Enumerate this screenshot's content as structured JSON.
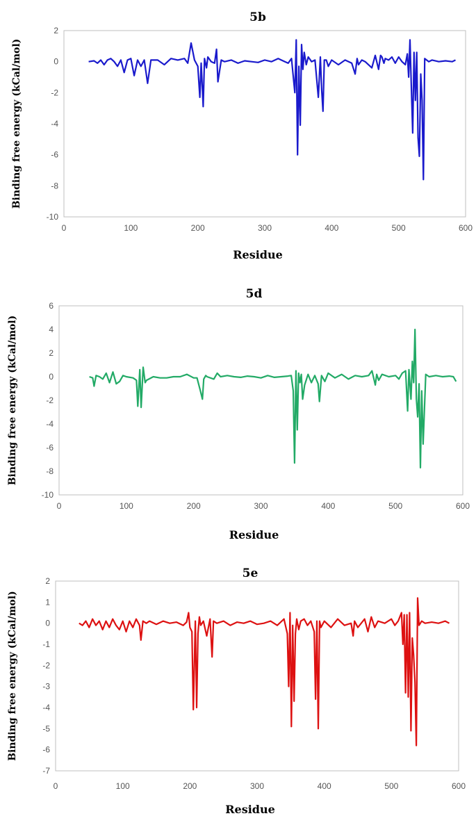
{
  "chart_data": [
    {
      "type": "line",
      "title": "5b",
      "xlabel": "Residue",
      "ylabel": "Binding free energy (kCal/mol)",
      "xlim": [
        0,
        600
      ],
      "ylim": [
        -10,
        2
      ],
      "xticks": [
        0,
        100,
        200,
        300,
        400,
        500,
        600
      ],
      "yticks": [
        -10,
        -8,
        -6,
        -4,
        -2,
        0,
        2
      ],
      "grid": false,
      "color": "#1a1acc",
      "series": [
        {
          "x": [
            37,
            45,
            50,
            55,
            60,
            65,
            70,
            75,
            80,
            85,
            90,
            95,
            100,
            105,
            110,
            115,
            120,
            125,
            130,
            140,
            150,
            160,
            170,
            180,
            185,
            190,
            195,
            200,
            203,
            205,
            208,
            210,
            213,
            215,
            220,
            225,
            228,
            230,
            235,
            240,
            250,
            260,
            270,
            280,
            290,
            300,
            310,
            320,
            330,
            335,
            340,
            345,
            347,
            349,
            351,
            353,
            355,
            357,
            359,
            362,
            365,
            370,
            375,
            380,
            383,
            385,
            387,
            389,
            392,
            395,
            400,
            410,
            420,
            430,
            435,
            438,
            440,
            445,
            450,
            460,
            465,
            470,
            473,
            475,
            478,
            480,
            485,
            490,
            495,
            500,
            505,
            510,
            513,
            515,
            517,
            519,
            521,
            523,
            525,
            527,
            529,
            531,
            533,
            535,
            537,
            539,
            545,
            550,
            560,
            570,
            580,
            585
          ],
          "y": [
            0,
            0.05,
            -0.1,
            0.1,
            -0.2,
            0.1,
            0.2,
            0,
            -0.3,
            0.1,
            -0.7,
            0.1,
            0.2,
            -0.9,
            0.1,
            -0.3,
            0.1,
            -1.4,
            0.1,
            0.1,
            -0.2,
            0.2,
            0.1,
            0.2,
            -0.1,
            1.2,
            0.1,
            -0.3,
            -2.3,
            -0.1,
            -2.9,
            0.2,
            -0.4,
            0.3,
            0,
            -0.1,
            0.8,
            -1.3,
            0.1,
            0,
            0.1,
            -0.1,
            0.05,
            0,
            -0.05,
            0.1,
            0,
            0.2,
            0,
            -0.1,
            0.2,
            -2,
            1.4,
            -6,
            -0.3,
            -4.1,
            1.1,
            -0.5,
            0.6,
            -0.2,
            0.3,
            0,
            0.1,
            -2.3,
            0.3,
            -1.8,
            -3.2,
            0.1,
            0.1,
            -0.3,
            0.1,
            -0.2,
            0.1,
            -0.1,
            -0.8,
            0.2,
            -0.2,
            0.1,
            0,
            -0.4,
            0.4,
            -0.5,
            0.4,
            0.3,
            -0.1,
            0.2,
            0.1,
            0.3,
            -0.1,
            0.3,
            0,
            -0.2,
            0.5,
            -1,
            1.4,
            -1.7,
            -4.6,
            0.6,
            -2.5,
            0.6,
            -4.9,
            -6.1,
            -0.8,
            -2.5,
            -7.6,
            0.2,
            0,
            0.1,
            0,
            0.05,
            0,
            0.1
          ]
        }
      ]
    },
    {
      "type": "line",
      "title": "5d",
      "xlabel": "Residue",
      "ylabel": "Binding free energy (kCal/mol)",
      "xlim": [
        0,
        600
      ],
      "ylim": [
        -10,
        6
      ],
      "xticks": [
        0,
        100,
        200,
        300,
        400,
        500,
        600
      ],
      "yticks": [
        -10,
        -8,
        -6,
        -4,
        -2,
        0,
        2,
        4,
        6
      ],
      "grid": false,
      "color": "#22aa66",
      "series": [
        {
          "x": [
            45,
            50,
            52,
            55,
            60,
            65,
            70,
            75,
            80,
            85,
            90,
            95,
            100,
            110,
            115,
            117,
            120,
            122,
            125,
            128,
            130,
            140,
            150,
            160,
            170,
            180,
            190,
            200,
            205,
            210,
            213,
            215,
            218,
            220,
            230,
            235,
            240,
            250,
            260,
            270,
            280,
            290,
            300,
            310,
            320,
            330,
            340,
            345,
            348,
            350,
            352,
            354,
            356,
            358,
            360,
            362,
            365,
            370,
            375,
            380,
            385,
            387,
            390,
            395,
            400,
            410,
            420,
            430,
            440,
            450,
            460,
            465,
            470,
            472,
            475,
            480,
            490,
            500,
            505,
            510,
            515,
            518,
            520,
            523,
            525,
            527,
            529,
            531,
            533,
            535,
            537,
            539,
            541,
            545,
            550,
            560,
            570,
            580,
            586,
            590
          ],
          "y": [
            0,
            -0.1,
            -0.8,
            0.1,
            0,
            -0.2,
            0.3,
            -0.5,
            0.4,
            -0.6,
            -0.4,
            0.1,
            0,
            -0.1,
            -0.3,
            -2.5,
            0.6,
            -2.6,
            0.8,
            -0.5,
            -0.3,
            0,
            -0.1,
            -0.1,
            0,
            0,
            0.2,
            -0.1,
            -0.1,
            -1.2,
            -1.9,
            -0.2,
            0.1,
            0,
            -0.2,
            0.3,
            0,
            0.1,
            0,
            -0.05,
            0.05,
            0,
            -0.1,
            0.1,
            -0.05,
            0,
            0.05,
            0.1,
            -1.2,
            -7.3,
            0.5,
            -4.5,
            0.3,
            -0.5,
            0.2,
            -1.9,
            -0.7,
            0.2,
            -0.5,
            0.1,
            -0.6,
            -2.1,
            0.1,
            -0.4,
            0.3,
            -0.1,
            0.2,
            -0.2,
            0.1,
            0,
            0.1,
            0.5,
            -0.7,
            0.2,
            -0.3,
            0.2,
            0,
            0.1,
            -0.2,
            0.3,
            0.5,
            -2.9,
            0.6,
            -1.9,
            1.3,
            -0.5,
            4,
            -1.9,
            -3.4,
            -0.6,
            -7.7,
            -1.2,
            -5.7,
            0.2,
            0,
            0.1,
            0,
            0.05,
            0,
            -0.4
          ]
        }
      ]
    },
    {
      "type": "line",
      "title": "5e",
      "xlabel": "Residue",
      "ylabel": "Binding free energy (kCal/mol)",
      "xlim": [
        0,
        600
      ],
      "ylim": [
        -7,
        2
      ],
      "xticks": [
        0,
        100,
        200,
        300,
        400,
        500,
        600
      ],
      "yticks": [
        -7,
        -6,
        -5,
        -4,
        -3,
        -2,
        -1,
        0,
        1,
        2
      ],
      "grid": false,
      "color": "#dd1111",
      "series": [
        {
          "x": [
            35,
            40,
            45,
            50,
            55,
            60,
            65,
            70,
            75,
            80,
            85,
            90,
            95,
            100,
            105,
            110,
            115,
            120,
            125,
            127,
            130,
            135,
            140,
            150,
            160,
            170,
            180,
            190,
            195,
            198,
            200,
            203,
            205,
            208,
            210,
            212,
            214,
            216,
            220,
            225,
            230,
            233,
            235,
            240,
            250,
            260,
            270,
            280,
            290,
            300,
            310,
            320,
            330,
            340,
            345,
            347,
            349,
            351,
            353,
            355,
            357,
            359,
            362,
            365,
            370,
            375,
            380,
            385,
            387,
            389,
            391,
            393,
            395,
            400,
            410,
            420,
            430,
            440,
            443,
            445,
            450,
            460,
            465,
            470,
            475,
            480,
            490,
            500,
            505,
            510,
            515,
            517,
            519,
            521,
            523,
            525,
            527,
            529,
            531,
            533,
            535,
            537,
            539,
            541,
            543,
            545,
            550,
            560,
            570,
            580,
            586
          ],
          "y": [
            0,
            -0.1,
            0.1,
            -0.2,
            0.2,
            -0.1,
            0.1,
            -0.3,
            0.1,
            -0.2,
            0.2,
            -0.1,
            -0.3,
            0.1,
            -0.4,
            0.1,
            -0.2,
            0.2,
            -0.1,
            -0.8,
            0.1,
            0,
            0.1,
            -0.05,
            0.1,
            0,
            0.05,
            -0.1,
            0.05,
            0.5,
            -0.2,
            -0.4,
            -4.1,
            0.1,
            -4,
            -0.5,
            0.3,
            -0.1,
            0.1,
            -0.6,
            0.2,
            -1.6,
            0.1,
            0,
            0.1,
            -0.1,
            0.05,
            0,
            0.1,
            -0.05,
            0,
            0.1,
            -0.1,
            0.2,
            -0.5,
            -3,
            0.5,
            -4.9,
            -0.1,
            -3.7,
            -0.5,
            0.2,
            -0.3,
            0.1,
            0.2,
            -0.1,
            0.1,
            -0.4,
            -3.6,
            0.1,
            -5,
            0.1,
            -0.2,
            0.1,
            -0.2,
            0.2,
            -0.1,
            0,
            -0.6,
            0.1,
            -0.2,
            0.2,
            -0.4,
            0.3,
            -0.2,
            0.1,
            0,
            0.2,
            -0.1,
            0.1,
            0.5,
            -1,
            0.4,
            -3.3,
            0.4,
            -3.5,
            0.5,
            -5.1,
            -0.7,
            -1.5,
            -2.8,
            -5.8,
            1.2,
            -0.1,
            0,
            0.1,
            0,
            0.05,
            0,
            0.1,
            0
          ]
        }
      ]
    }
  ]
}
